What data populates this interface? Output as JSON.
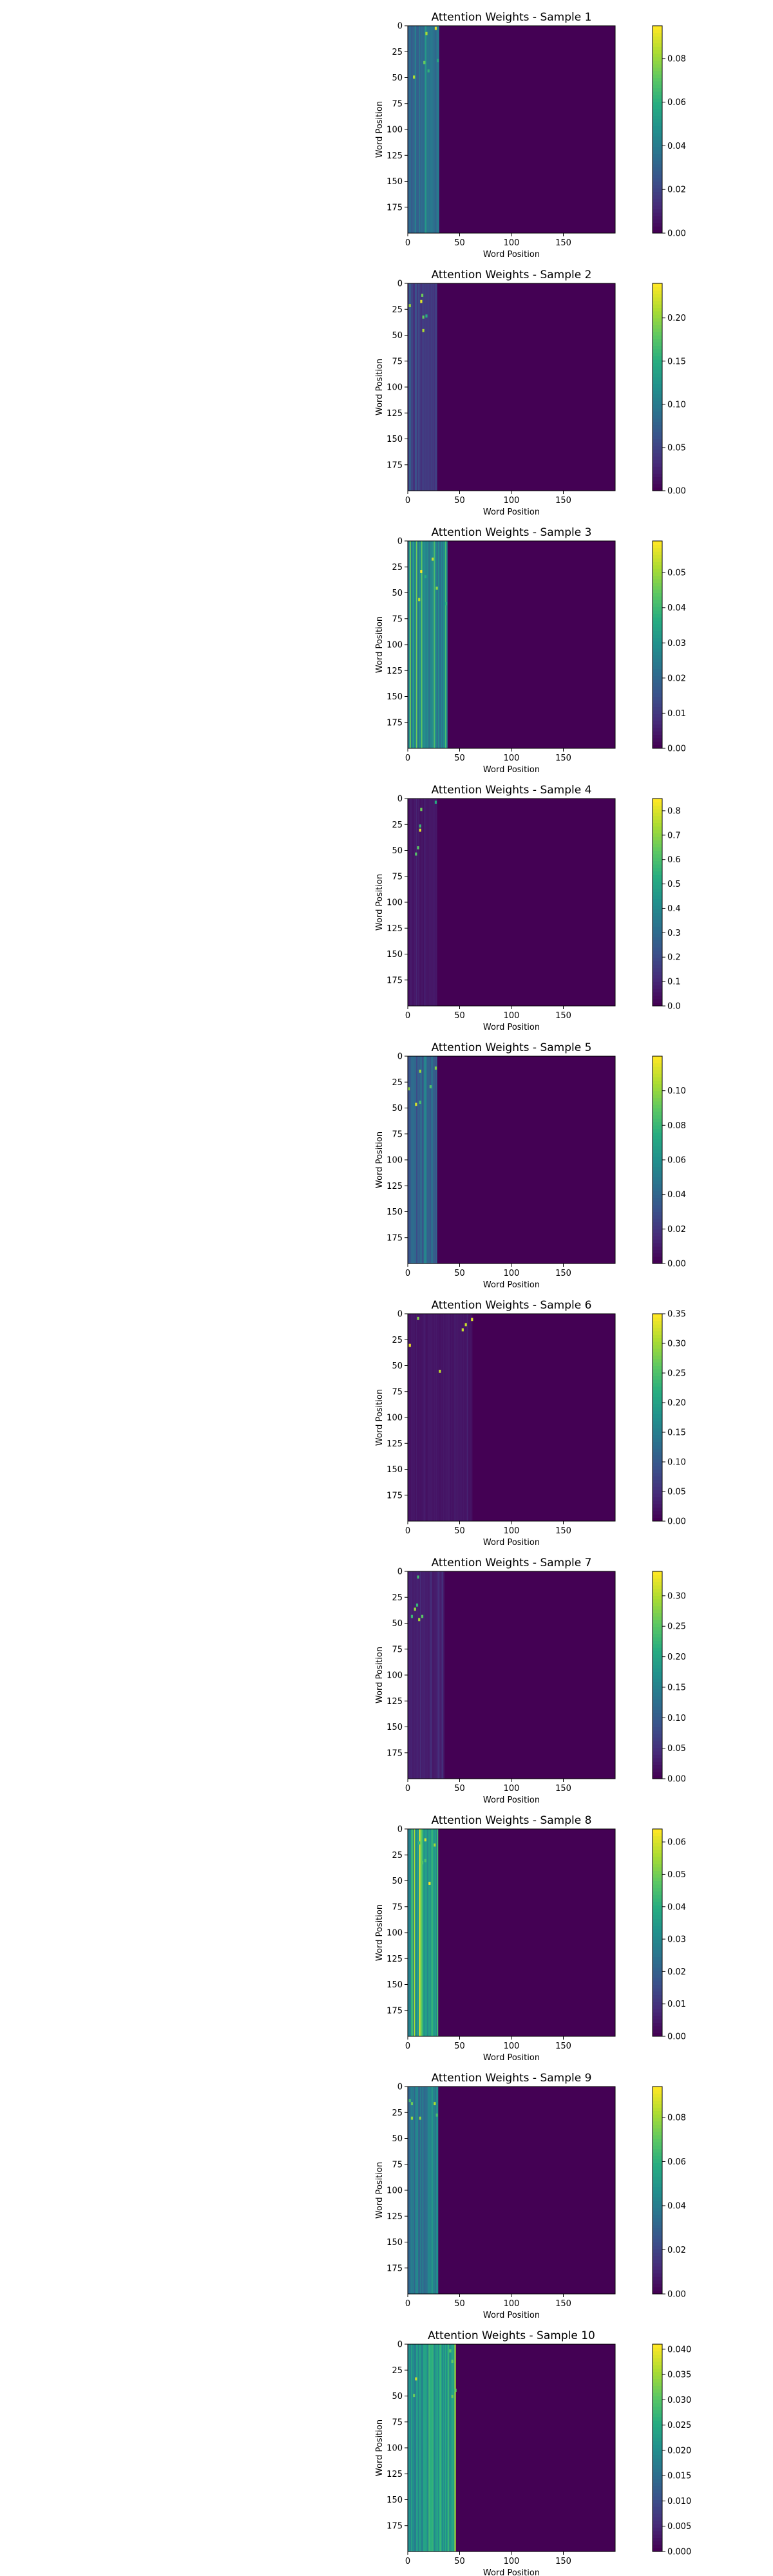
{
  "figure": {
    "xlabel": "Word Position",
    "ylabel": "Word Position",
    "colormap": "viridis",
    "background": "#ffffff",
    "viridis_low": "#440154",
    "viridis_high": "#fde725"
  },
  "chart_data": [
    {
      "type": "heatmap",
      "title": "Attention Weights - Sample 1",
      "xlabel": "Word Position",
      "ylabel": "Word Position",
      "xlim": [
        0,
        200
      ],
      "ylim": [
        200,
        0
      ],
      "xticks": [
        0,
        50,
        100,
        150
      ],
      "yticks": [
        0,
        25,
        50,
        75,
        100,
        125,
        150,
        175
      ],
      "colorbar": {
        "min": 0,
        "max": 0.095,
        "ticks": [
          0.0,
          0.02,
          0.04,
          0.06,
          0.08
        ],
        "tick_labels": [
          "0.00",
          "0.02",
          "0.04",
          "0.06",
          "0.08"
        ]
      },
      "active_columns": [
        0,
        30
      ],
      "typical_value": 0.035
    },
    {
      "type": "heatmap",
      "title": "Attention Weights - Sample 2",
      "xlabel": "Word Position",
      "ylabel": "Word Position",
      "xlim": [
        0,
        200
      ],
      "ylim": [
        200,
        0
      ],
      "xticks": [
        0,
        50,
        100,
        150
      ],
      "yticks": [
        0,
        25,
        50,
        75,
        100,
        125,
        150,
        175
      ],
      "colorbar": {
        "min": 0,
        "max": 0.24,
        "ticks": [
          0.0,
          0.05,
          0.1,
          0.15,
          0.2
        ],
        "tick_labels": [
          "0.00",
          "0.05",
          "0.10",
          "0.15",
          "0.20"
        ]
      },
      "active_columns": [
        0,
        28
      ],
      "typical_value": 0.04
    },
    {
      "type": "heatmap",
      "title": "Attention Weights - Sample 3",
      "xlabel": "Word Position",
      "ylabel": "Word Position",
      "xlim": [
        0,
        200
      ],
      "ylim": [
        200,
        0
      ],
      "xticks": [
        0,
        50,
        100,
        150
      ],
      "yticks": [
        0,
        25,
        50,
        75,
        100,
        125,
        150,
        175
      ],
      "colorbar": {
        "min": 0,
        "max": 0.059,
        "ticks": [
          0.0,
          0.01,
          0.02,
          0.03,
          0.04,
          0.05
        ],
        "tick_labels": [
          "0.00",
          "0.01",
          "0.02",
          "0.03",
          "0.04",
          "0.05"
        ]
      },
      "active_columns": [
        0,
        38
      ],
      "typical_value": 0.026
    },
    {
      "type": "heatmap",
      "title": "Attention Weights - Sample 4",
      "xlabel": "Word Position",
      "ylabel": "Word Position",
      "xlim": [
        0,
        200
      ],
      "ylim": [
        200,
        0
      ],
      "xticks": [
        0,
        50,
        100,
        150
      ],
      "yticks": [
        0,
        25,
        50,
        75,
        100,
        125,
        150,
        175
      ],
      "colorbar": {
        "min": 0,
        "max": 0.85,
        "ticks": [
          0.0,
          0.1,
          0.2,
          0.3,
          0.4,
          0.5,
          0.6,
          0.7,
          0.8
        ],
        "tick_labels": [
          "0.0",
          "0.1",
          "0.2",
          "0.3",
          "0.4",
          "0.5",
          "0.6",
          "0.7",
          "0.8"
        ]
      },
      "active_columns": [
        0,
        28
      ],
      "typical_value": 0.05
    },
    {
      "type": "heatmap",
      "title": "Attention Weights - Sample 5",
      "xlabel": "Word Position",
      "ylabel": "Word Position",
      "xlim": [
        0,
        200
      ],
      "ylim": [
        200,
        0
      ],
      "xticks": [
        0,
        50,
        100,
        150
      ],
      "yticks": [
        0,
        25,
        50,
        75,
        100,
        125,
        150,
        175
      ],
      "colorbar": {
        "min": 0,
        "max": 0.12,
        "ticks": [
          0.0,
          0.02,
          0.04,
          0.06,
          0.08,
          0.1
        ],
        "tick_labels": [
          "0.00",
          "0.02",
          "0.04",
          "0.06",
          "0.08",
          "0.10"
        ]
      },
      "active_columns": [
        0,
        28
      ],
      "typical_value": 0.035
    },
    {
      "type": "heatmap",
      "title": "Attention Weights - Sample 6",
      "xlabel": "Word Position",
      "ylabel": "Word Position",
      "xlim": [
        0,
        200
      ],
      "ylim": [
        200,
        0
      ],
      "xticks": [
        0,
        50,
        100,
        150
      ],
      "yticks": [
        0,
        25,
        50,
        75,
        100,
        125,
        150,
        175
      ],
      "colorbar": {
        "min": 0,
        "max": 0.35,
        "ticks": [
          0.0,
          0.05,
          0.1,
          0.15,
          0.2,
          0.25,
          0.3,
          0.35
        ],
        "tick_labels": [
          "0.00",
          "0.05",
          "0.10",
          "0.15",
          "0.20",
          "0.25",
          "0.30",
          "0.35"
        ]
      },
      "active_columns": [
        0,
        62
      ],
      "typical_value": 0.02
    },
    {
      "type": "heatmap",
      "title": "Attention Weights - Sample 7",
      "xlabel": "Word Position",
      "ylabel": "Word Position",
      "xlim": [
        0,
        200
      ],
      "ylim": [
        200,
        0
      ],
      "xticks": [
        0,
        50,
        100,
        150
      ],
      "yticks": [
        0,
        25,
        50,
        75,
        100,
        125,
        150,
        175
      ],
      "colorbar": {
        "min": 0,
        "max": 0.34,
        "ticks": [
          0.0,
          0.05,
          0.1,
          0.15,
          0.2,
          0.25,
          0.3
        ],
        "tick_labels": [
          "0.00",
          "0.05",
          "0.10",
          "0.15",
          "0.20",
          "0.25",
          "0.30"
        ]
      },
      "active_columns": [
        0,
        35
      ],
      "typical_value": 0.03
    },
    {
      "type": "heatmap",
      "title": "Attention Weights - Sample 8",
      "xlabel": "Word Position",
      "ylabel": "Word Position",
      "xlim": [
        0,
        200
      ],
      "ylim": [
        200,
        0
      ],
      "xticks": [
        0,
        50,
        100,
        150
      ],
      "yticks": [
        0,
        25,
        50,
        75,
        100,
        125,
        150,
        175
      ],
      "colorbar": {
        "min": 0,
        "max": 0.064,
        "ticks": [
          0.0,
          0.01,
          0.02,
          0.03,
          0.04,
          0.05,
          0.06
        ],
        "tick_labels": [
          "0.00",
          "0.01",
          "0.02",
          "0.03",
          "0.04",
          "0.05",
          "0.06"
        ]
      },
      "active_columns": [
        0,
        29
      ],
      "typical_value": 0.036
    },
    {
      "type": "heatmap",
      "title": "Attention Weights - Sample 9",
      "xlabel": "Word Position",
      "ylabel": "Word Position",
      "xlim": [
        0,
        200
      ],
      "ylim": [
        200,
        0
      ],
      "xticks": [
        0,
        50,
        100,
        150
      ],
      "yticks": [
        0,
        25,
        50,
        75,
        100,
        125,
        150,
        175
      ],
      "colorbar": {
        "min": 0,
        "max": 0.094,
        "ticks": [
          0.0,
          0.02,
          0.04,
          0.06,
          0.08
        ],
        "tick_labels": [
          "0.00",
          "0.02",
          "0.04",
          "0.06",
          "0.08"
        ]
      },
      "active_columns": [
        0,
        29
      ],
      "typical_value": 0.036
    },
    {
      "type": "heatmap",
      "title": "Attention Weights - Sample 10",
      "xlabel": "Word Position",
      "ylabel": "Word Position",
      "xlim": [
        0,
        200
      ],
      "ylim": [
        200,
        0
      ],
      "xticks": [
        0,
        50,
        100,
        150
      ],
      "yticks": [
        0,
        25,
        50,
        75,
        100,
        125,
        150,
        175
      ],
      "colorbar": {
        "min": 0,
        "max": 0.041,
        "ticks": [
          0.0,
          0.005,
          0.01,
          0.015,
          0.02,
          0.025,
          0.03,
          0.035,
          0.04
        ],
        "tick_labels": [
          "0.000",
          "0.005",
          "0.010",
          "0.015",
          "0.020",
          "0.025",
          "0.030",
          "0.035",
          "0.040"
        ]
      },
      "active_columns": [
        0,
        46
      ],
      "typical_value": 0.022
    }
  ]
}
